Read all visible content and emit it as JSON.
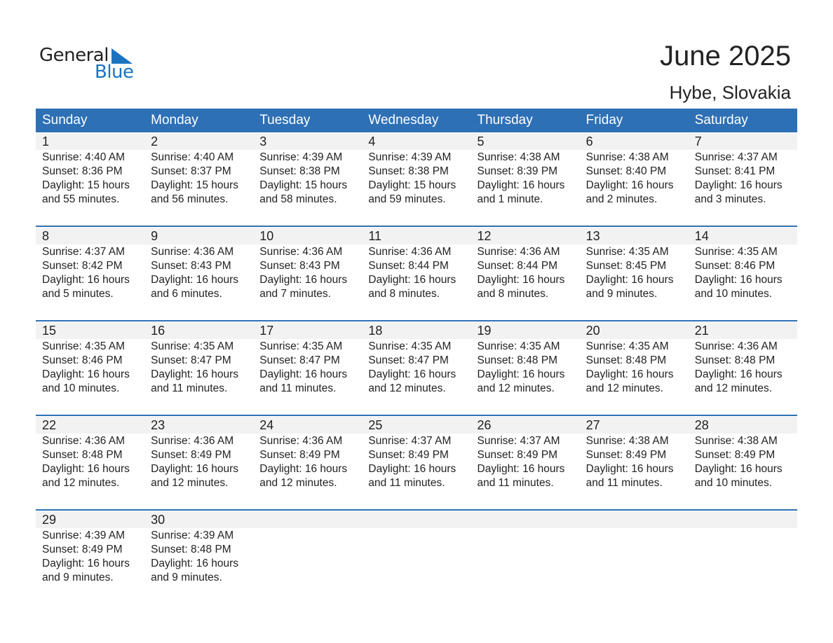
{
  "logo": {
    "text1": "General",
    "text2": "Blue",
    "accent": "#1b73c0"
  },
  "title": "June 2025",
  "subtitle": "Hybe, Slovakia",
  "colors": {
    "header": "#2e70b5",
    "band": "#f2f2f2"
  },
  "weekdays": [
    "Sunday",
    "Monday",
    "Tuesday",
    "Wednesday",
    "Thursday",
    "Friday",
    "Saturday"
  ],
  "weeks": [
    [
      {
        "day": "1",
        "sunrise": "Sunrise: 4:40 AM",
        "sunset": "Sunset: 8:36 PM",
        "daylight": "Daylight: 15 hours",
        "minutes": "and 55 minutes."
      },
      {
        "day": "2",
        "sunrise": "Sunrise: 4:40 AM",
        "sunset": "Sunset: 8:37 PM",
        "daylight": "Daylight: 15 hours",
        "minutes": "and 56 minutes."
      },
      {
        "day": "3",
        "sunrise": "Sunrise: 4:39 AM",
        "sunset": "Sunset: 8:38 PM",
        "daylight": "Daylight: 15 hours",
        "minutes": "and 58 minutes."
      },
      {
        "day": "4",
        "sunrise": "Sunrise: 4:39 AM",
        "sunset": "Sunset: 8:38 PM",
        "daylight": "Daylight: 15 hours",
        "minutes": "and 59 minutes."
      },
      {
        "day": "5",
        "sunrise": "Sunrise: 4:38 AM",
        "sunset": "Sunset: 8:39 PM",
        "daylight": "Daylight: 16 hours",
        "minutes": "and 1 minute."
      },
      {
        "day": "6",
        "sunrise": "Sunrise: 4:38 AM",
        "sunset": "Sunset: 8:40 PM",
        "daylight": "Daylight: 16 hours",
        "minutes": "and 2 minutes."
      },
      {
        "day": "7",
        "sunrise": "Sunrise: 4:37 AM",
        "sunset": "Sunset: 8:41 PM",
        "daylight": "Daylight: 16 hours",
        "minutes": "and 3 minutes."
      }
    ],
    [
      {
        "day": "8",
        "sunrise": "Sunrise: 4:37 AM",
        "sunset": "Sunset: 8:42 PM",
        "daylight": "Daylight: 16 hours",
        "minutes": "and 5 minutes."
      },
      {
        "day": "9",
        "sunrise": "Sunrise: 4:36 AM",
        "sunset": "Sunset: 8:43 PM",
        "daylight": "Daylight: 16 hours",
        "minutes": "and 6 minutes."
      },
      {
        "day": "10",
        "sunrise": "Sunrise: 4:36 AM",
        "sunset": "Sunset: 8:43 PM",
        "daylight": "Daylight: 16 hours",
        "minutes": "and 7 minutes."
      },
      {
        "day": "11",
        "sunrise": "Sunrise: 4:36 AM",
        "sunset": "Sunset: 8:44 PM",
        "daylight": "Daylight: 16 hours",
        "minutes": "and 8 minutes."
      },
      {
        "day": "12",
        "sunrise": "Sunrise: 4:36 AM",
        "sunset": "Sunset: 8:44 PM",
        "daylight": "Daylight: 16 hours",
        "minutes": "and 8 minutes."
      },
      {
        "day": "13",
        "sunrise": "Sunrise: 4:35 AM",
        "sunset": "Sunset: 8:45 PM",
        "daylight": "Daylight: 16 hours",
        "minutes": "and 9 minutes."
      },
      {
        "day": "14",
        "sunrise": "Sunrise: 4:35 AM",
        "sunset": "Sunset: 8:46 PM",
        "daylight": "Daylight: 16 hours",
        "minutes": "and 10 minutes."
      }
    ],
    [
      {
        "day": "15",
        "sunrise": "Sunrise: 4:35 AM",
        "sunset": "Sunset: 8:46 PM",
        "daylight": "Daylight: 16 hours",
        "minutes": "and 10 minutes."
      },
      {
        "day": "16",
        "sunrise": "Sunrise: 4:35 AM",
        "sunset": "Sunset: 8:47 PM",
        "daylight": "Daylight: 16 hours",
        "minutes": "and 11 minutes."
      },
      {
        "day": "17",
        "sunrise": "Sunrise: 4:35 AM",
        "sunset": "Sunset: 8:47 PM",
        "daylight": "Daylight: 16 hours",
        "minutes": "and 11 minutes."
      },
      {
        "day": "18",
        "sunrise": "Sunrise: 4:35 AM",
        "sunset": "Sunset: 8:47 PM",
        "daylight": "Daylight: 16 hours",
        "minutes": "and 12 minutes."
      },
      {
        "day": "19",
        "sunrise": "Sunrise: 4:35 AM",
        "sunset": "Sunset: 8:48 PM",
        "daylight": "Daylight: 16 hours",
        "minutes": "and 12 minutes."
      },
      {
        "day": "20",
        "sunrise": "Sunrise: 4:35 AM",
        "sunset": "Sunset: 8:48 PM",
        "daylight": "Daylight: 16 hours",
        "minutes": "and 12 minutes."
      },
      {
        "day": "21",
        "sunrise": "Sunrise: 4:36 AM",
        "sunset": "Sunset: 8:48 PM",
        "daylight": "Daylight: 16 hours",
        "minutes": "and 12 minutes."
      }
    ],
    [
      {
        "day": "22",
        "sunrise": "Sunrise: 4:36 AM",
        "sunset": "Sunset: 8:48 PM",
        "daylight": "Daylight: 16 hours",
        "minutes": "and 12 minutes."
      },
      {
        "day": "23",
        "sunrise": "Sunrise: 4:36 AM",
        "sunset": "Sunset: 8:49 PM",
        "daylight": "Daylight: 16 hours",
        "minutes": "and 12 minutes."
      },
      {
        "day": "24",
        "sunrise": "Sunrise: 4:36 AM",
        "sunset": "Sunset: 8:49 PM",
        "daylight": "Daylight: 16 hours",
        "minutes": "and 12 minutes."
      },
      {
        "day": "25",
        "sunrise": "Sunrise: 4:37 AM",
        "sunset": "Sunset: 8:49 PM",
        "daylight": "Daylight: 16 hours",
        "minutes": "and 11 minutes."
      },
      {
        "day": "26",
        "sunrise": "Sunrise: 4:37 AM",
        "sunset": "Sunset: 8:49 PM",
        "daylight": "Daylight: 16 hours",
        "minutes": "and 11 minutes."
      },
      {
        "day": "27",
        "sunrise": "Sunrise: 4:38 AM",
        "sunset": "Sunset: 8:49 PM",
        "daylight": "Daylight: 16 hours",
        "minutes": "and 11 minutes."
      },
      {
        "day": "28",
        "sunrise": "Sunrise: 4:38 AM",
        "sunset": "Sunset: 8:49 PM",
        "daylight": "Daylight: 16 hours",
        "minutes": "and 10 minutes."
      }
    ],
    [
      {
        "day": "29",
        "sunrise": "Sunrise: 4:39 AM",
        "sunset": "Sunset: 8:49 PM",
        "daylight": "Daylight: 16 hours",
        "minutes": "and 9 minutes."
      },
      {
        "day": "30",
        "sunrise": "Sunrise: 4:39 AM",
        "sunset": "Sunset: 8:48 PM",
        "daylight": "Daylight: 16 hours",
        "minutes": "and 9 minutes."
      }
    ]
  ]
}
